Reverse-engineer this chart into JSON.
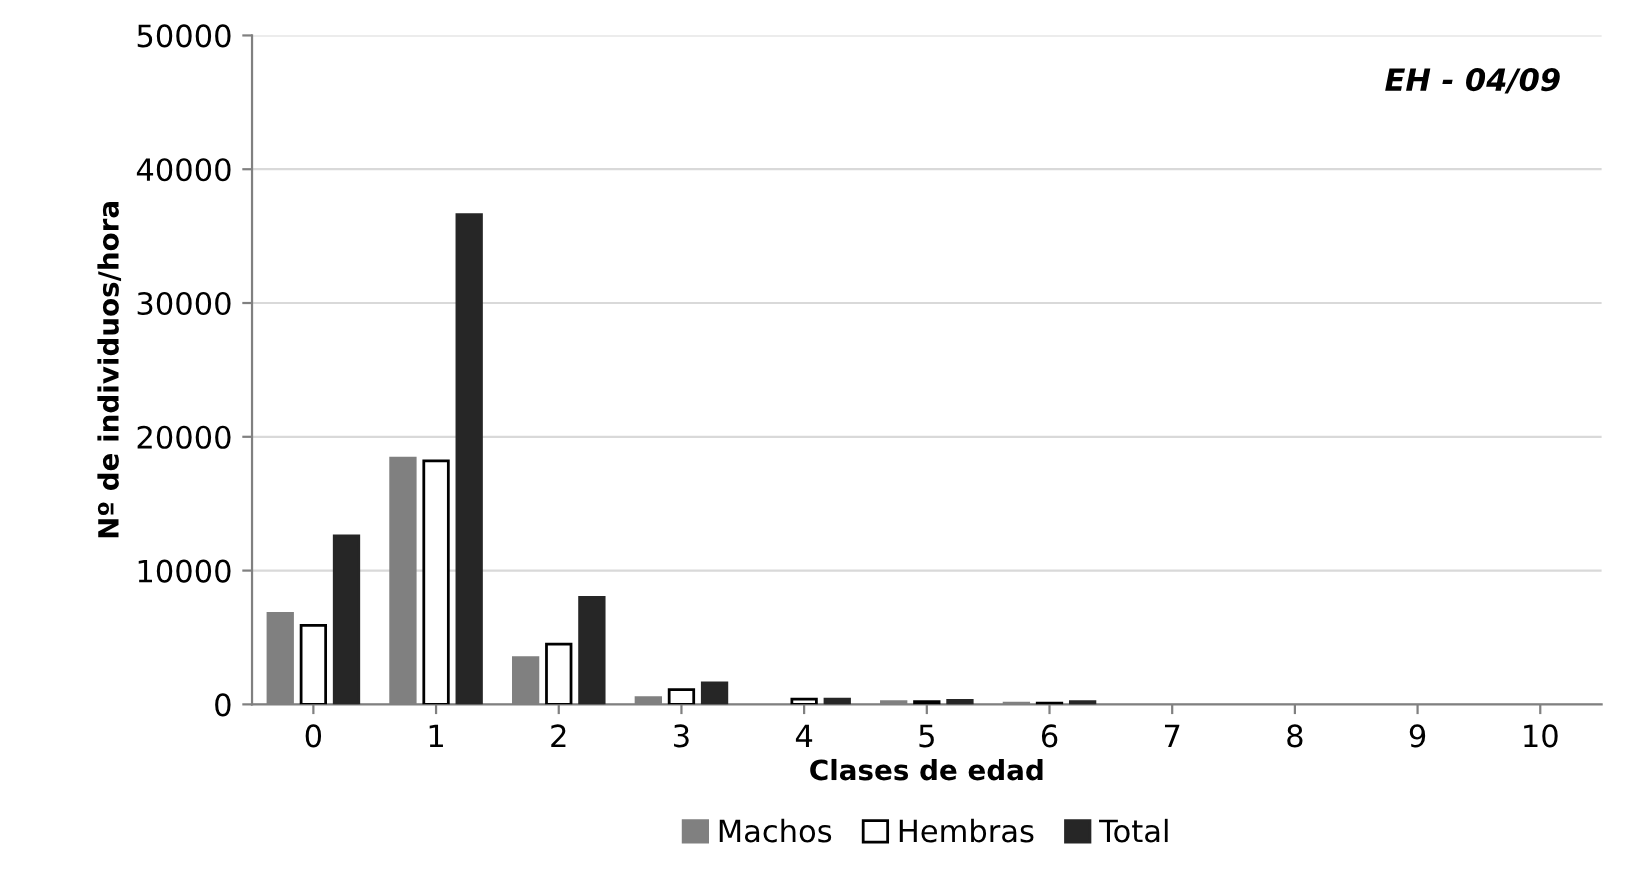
{
  "chart_data": {
    "type": "bar",
    "xlabel": "Clases de edad",
    "ylabel": "Nº de individuos/hora",
    "annotations": [
      "EH - 04/09"
    ],
    "categories": [
      "0",
      "1",
      "2",
      "3",
      "4",
      "5",
      "6",
      "7",
      "8",
      "9",
      "10"
    ],
    "series": [
      {
        "name": "Machos",
        "color": "#808080",
        "values": [
          6800,
          18400,
          3500,
          500,
          null,
          200,
          100,
          0,
          0,
          0,
          0
        ]
      },
      {
        "name": "Hembras",
        "color": "#ffffff",
        "values": [
          5900,
          18200,
          4500,
          1100,
          400,
          200,
          100,
          0,
          0,
          0,
          0
        ]
      },
      {
        "name": "Total",
        "color": "#262626",
        "values": [
          12600,
          36600,
          8000,
          1600,
          400,
          300,
          200,
          0,
          0,
          0,
          0
        ]
      }
    ],
    "ylim": [
      0,
      50000
    ],
    "yticks": [
      0,
      10000,
      20000,
      30000,
      40000,
      50000
    ],
    "grid": "y",
    "legend": "bottom"
  }
}
